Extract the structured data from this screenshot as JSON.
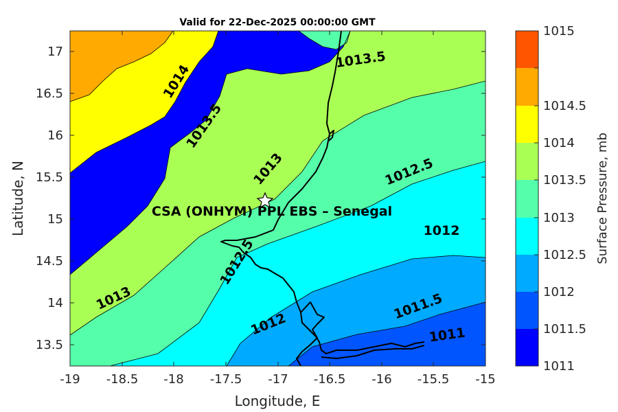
{
  "title": "Valid for 22-Dec-2025 00:00:00 GMT",
  "map": {
    "xlabel": "Longitude, E",
    "ylabel": "Latitude, N",
    "xlim": [
      -19,
      -15
    ],
    "ylim": [
      13.25,
      17.25
    ],
    "xticks": [
      "-19",
      "-18.5",
      "-18",
      "-17.5",
      "-17",
      "-16.5",
      "-16",
      "-15.5",
      "-15"
    ],
    "yticks": [
      "13.5",
      "14",
      "14.5",
      "15",
      "15.5",
      "16",
      "16.5",
      "17"
    ],
    "contour_labels": [
      {
        "text": "1014",
        "lon": -18.05,
        "lat": 16.6
      },
      {
        "text": "1013.5",
        "lon": -16.3,
        "lat": 16.97
      },
      {
        "text": "1013.5",
        "lon": -17.85,
        "lat": 16.1
      },
      {
        "text": "1013",
        "lon": -17.26,
        "lat": 15.6
      },
      {
        "text": "1012.5",
        "lon": -15.75,
        "lat": 15.53
      },
      {
        "text": "1012",
        "lon": -15.38,
        "lat": 14.86
      },
      {
        "text": "1012.5",
        "lon": -17.35,
        "lat": 14.47
      },
      {
        "text": "1013",
        "lon": -18.6,
        "lat": 14.05
      },
      {
        "text": "1012",
        "lon": -17.23,
        "lat": 13.8
      },
      {
        "text": "1011.5",
        "lon": -15.72,
        "lat": 13.95
      },
      {
        "text": "1011",
        "lon": -15.33,
        "lat": 13.64
      }
    ],
    "site": {
      "name": "CSA (ONHYM) PPL EBS  – Senegal",
      "lon": -17.12,
      "lat": 15.23,
      "marker": "star-icon"
    }
  },
  "colorbar": {
    "label": "Surface Pressure, mb",
    "ticks": [
      "1011",
      "1011.5",
      "1012",
      "1012.5",
      "1013",
      "1013.5",
      "1014",
      "1014.5",
      "1015"
    ],
    "colors": [
      "#0000ff",
      "#0055ff",
      "#00aaff",
      "#00ffff",
      "#55ffaa",
      "#aaff55",
      "#ffff00",
      "#ffaa00",
      "#ff5500"
    ]
  },
  "chart_data": {
    "type": "heatmap",
    "title": "Valid for 22-Dec-2025 00:00:00 GMT",
    "xlabel": "Longitude, E",
    "ylabel": "Latitude, N",
    "xlim": [
      -19,
      -15
    ],
    "ylim": [
      13.25,
      17.25
    ],
    "colorbar_label": "Surface Pressure, mb",
    "levels": [
      1011,
      1011.5,
      1012,
      1012.5,
      1013,
      1013.5,
      1014,
      1014.5,
      1015
    ]
  }
}
